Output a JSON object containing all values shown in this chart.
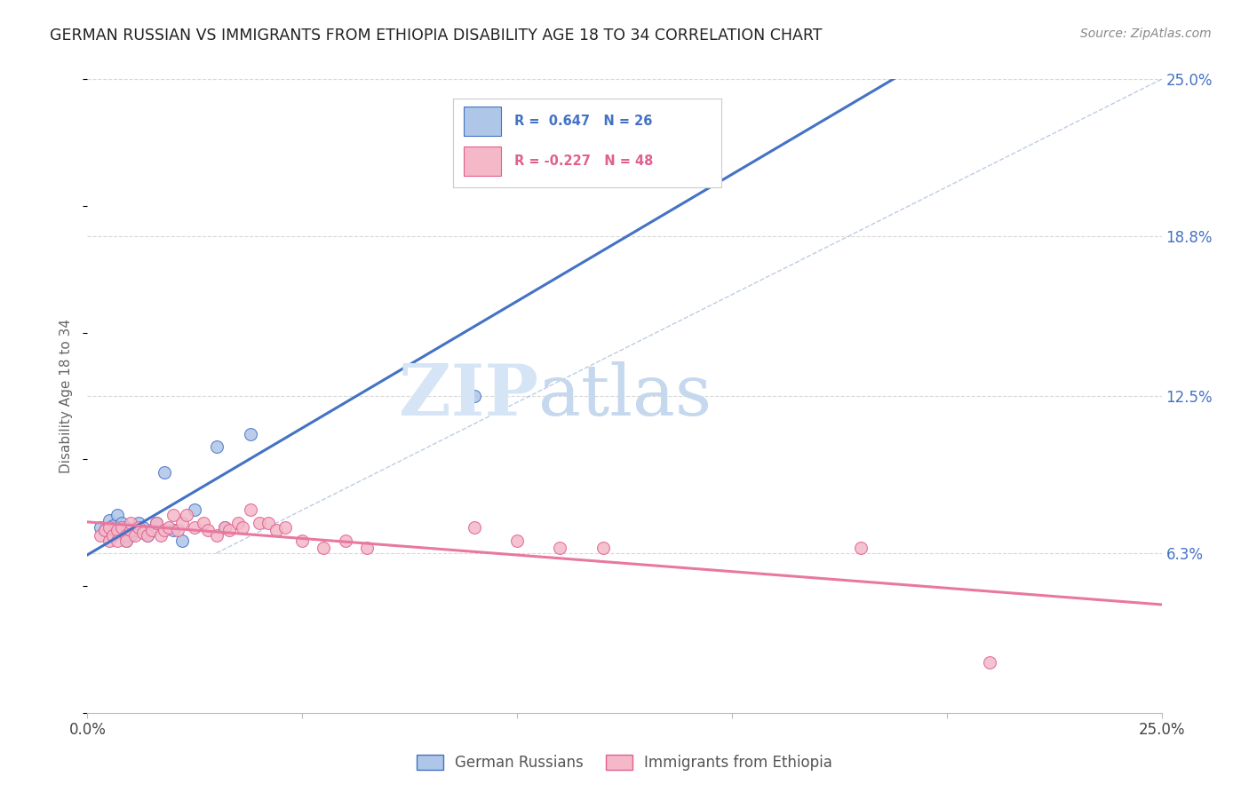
{
  "title": "GERMAN RUSSIAN VS IMMIGRANTS FROM ETHIOPIA DISABILITY AGE 18 TO 34 CORRELATION CHART",
  "source": "Source: ZipAtlas.com",
  "ylabel": "Disability Age 18 to 34",
  "xlim": [
    0.0,
    0.25
  ],
  "ylim": [
    0.0,
    0.25
  ],
  "xticks": [
    0.0,
    0.05,
    0.1,
    0.15,
    0.2,
    0.25
  ],
  "xtick_labels": [
    "0.0%",
    "",
    "",
    "",
    "",
    "25.0%"
  ],
  "ytick_labels_right": [
    "6.3%",
    "12.5%",
    "18.8%",
    "25.0%"
  ],
  "yticks_right": [
    0.063,
    0.125,
    0.188,
    0.25
  ],
  "blue_R": 0.647,
  "blue_N": 26,
  "pink_R": -0.227,
  "pink_N": 48,
  "blue_fill_color": "#aec6e8",
  "pink_fill_color": "#f4b8c8",
  "blue_edge_color": "#4472c4",
  "pink_edge_color": "#e06090",
  "blue_line_color": "#4472c4",
  "pink_line_color": "#e878a0",
  "ref_line_color": "#a0b8d8",
  "legend_label_blue": "German Russians",
  "legend_label_pink": "Immigrants from Ethiopia",
  "blue_scatter_x": [
    0.003,
    0.004,
    0.005,
    0.006,
    0.007,
    0.007,
    0.008,
    0.008,
    0.009,
    0.009,
    0.01,
    0.011,
    0.012,
    0.013,
    0.014,
    0.015,
    0.016,
    0.018,
    0.02,
    0.022,
    0.025,
    0.03,
    0.032,
    0.038,
    0.09,
    0.13
  ],
  "blue_scatter_y": [
    0.073,
    0.072,
    0.076,
    0.074,
    0.071,
    0.078,
    0.073,
    0.075,
    0.068,
    0.073,
    0.07,
    0.072,
    0.075,
    0.073,
    0.07,
    0.072,
    0.075,
    0.095,
    0.072,
    0.068,
    0.08,
    0.105,
    0.073,
    0.11,
    0.125,
    0.215
  ],
  "pink_scatter_x": [
    0.003,
    0.004,
    0.005,
    0.005,
    0.006,
    0.007,
    0.007,
    0.008,
    0.009,
    0.009,
    0.01,
    0.01,
    0.011,
    0.012,
    0.013,
    0.014,
    0.015,
    0.016,
    0.017,
    0.018,
    0.019,
    0.02,
    0.021,
    0.022,
    0.023,
    0.025,
    0.027,
    0.028,
    0.03,
    0.032,
    0.033,
    0.035,
    0.036,
    0.038,
    0.04,
    0.042,
    0.044,
    0.046,
    0.05,
    0.055,
    0.06,
    0.065,
    0.09,
    0.1,
    0.11,
    0.12,
    0.18,
    0.21
  ],
  "pink_scatter_y": [
    0.07,
    0.072,
    0.068,
    0.073,
    0.07,
    0.072,
    0.068,
    0.073,
    0.07,
    0.068,
    0.072,
    0.075,
    0.07,
    0.073,
    0.071,
    0.07,
    0.072,
    0.075,
    0.07,
    0.072,
    0.073,
    0.078,
    0.072,
    0.075,
    0.078,
    0.073,
    0.075,
    0.072,
    0.07,
    0.073,
    0.072,
    0.075,
    0.073,
    0.08,
    0.075,
    0.075,
    0.072,
    0.073,
    0.068,
    0.065,
    0.068,
    0.065,
    0.073,
    0.068,
    0.065,
    0.065,
    0.065,
    0.02
  ],
  "watermark_zip": "ZIP",
  "watermark_atlas": "atlas",
  "watermark_color_zip": "#d0dff0",
  "watermark_color_atlas": "#c0d0e8",
  "background_color": "#ffffff",
  "grid_color": "#d8d8d8"
}
